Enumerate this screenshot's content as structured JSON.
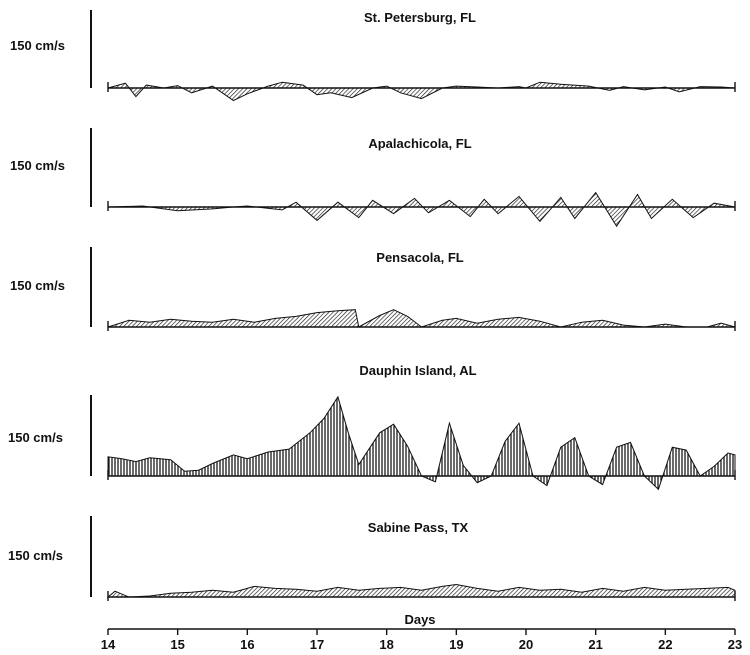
{
  "chart_data": {
    "type": "area",
    "xlabel": "Days",
    "x_ticks": [
      "14",
      "15",
      "16",
      "17",
      "18",
      "19",
      "20",
      "21",
      "22",
      "23"
    ],
    "xlim": [
      14,
      23
    ],
    "scale_bar_label": "150 cm/s",
    "scale_bar_value": 150,
    "panels": [
      {
        "title": "St. Petersburg, FL",
        "series": {
          "x": [
            14.0,
            14.25,
            14.4,
            14.55,
            14.8,
            15.0,
            15.2,
            15.5,
            15.8,
            16.0,
            16.3,
            16.5,
            16.8,
            17.0,
            17.2,
            17.5,
            17.8,
            18.0,
            18.2,
            18.5,
            18.8,
            19.0,
            19.3,
            19.6,
            19.9,
            20.0,
            20.2,
            20.5,
            20.9,
            21.2,
            21.4,
            21.7,
            22.0,
            22.2,
            22.5,
            22.8,
            23.0
          ],
          "y": [
            0,
            10,
            -18,
            6,
            0,
            5,
            -10,
            4,
            -26,
            -12,
            4,
            12,
            6,
            -14,
            -10,
            -20,
            0,
            4,
            -10,
            -22,
            0,
            4,
            2,
            0,
            3,
            0,
            12,
            8,
            4,
            -5,
            3,
            -4,
            2,
            -8,
            3,
            2,
            0
          ]
        }
      },
      {
        "title": "Apalachicola, FL",
        "series": {
          "x": [
            14.0,
            14.5,
            15.0,
            15.5,
            15.8,
            16.0,
            16.5,
            16.7,
            17.0,
            17.3,
            17.6,
            17.8,
            18.1,
            18.4,
            18.6,
            18.9,
            19.2,
            19.4,
            19.6,
            19.9,
            20.2,
            20.5,
            20.7,
            21.0,
            21.3,
            21.6,
            21.8,
            22.1,
            22.4,
            22.7,
            23.0
          ],
          "y": [
            0,
            2,
            -8,
            -4,
            0,
            2,
            -6,
            10,
            -28,
            10,
            -22,
            14,
            -14,
            18,
            -12,
            14,
            -20,
            16,
            -14,
            22,
            -30,
            20,
            -24,
            30,
            -40,
            26,
            -24,
            16,
            -22,
            8,
            0
          ]
        }
      },
      {
        "title": "Pensacola, FL",
        "series": {
          "x": [
            14.0,
            14.3,
            14.6,
            14.9,
            15.2,
            15.5,
            15.8,
            16.1,
            16.4,
            16.7,
            17.0,
            17.3,
            17.55,
            17.6,
            17.9,
            18.1,
            18.3,
            18.5,
            18.8,
            19.0,
            19.3,
            19.6,
            19.9,
            20.2,
            20.5,
            20.8,
            21.1,
            21.4,
            21.7,
            22.0,
            22.3,
            22.6,
            22.8,
            23.0
          ],
          "y": [
            0,
            14,
            10,
            16,
            12,
            10,
            16,
            10,
            18,
            22,
            30,
            34,
            36,
            0,
            24,
            36,
            22,
            0,
            14,
            18,
            8,
            16,
            20,
            12,
            0,
            10,
            14,
            4,
            0,
            6,
            0,
            0,
            8,
            0
          ]
        }
      },
      {
        "title": "Dauphin Island, AL",
        "series": {
          "x": [
            14.0,
            14.2,
            14.4,
            14.6,
            14.9,
            15.1,
            15.3,
            15.5,
            15.8,
            16.0,
            16.3,
            16.6,
            16.9,
            17.1,
            17.3,
            17.45,
            17.6,
            17.9,
            18.1,
            18.3,
            18.5,
            18.7,
            18.9,
            19.1,
            19.3,
            19.5,
            19.7,
            19.9,
            20.1,
            20.3,
            20.5,
            20.7,
            20.9,
            21.1,
            21.3,
            21.5,
            21.7,
            21.9,
            22.1,
            22.3,
            22.5,
            22.7,
            22.9,
            23.0
          ],
          "y": [
            40,
            36,
            30,
            38,
            34,
            10,
            12,
            26,
            44,
            36,
            50,
            56,
            90,
            120,
            165,
            90,
            24,
            90,
            108,
            62,
            0,
            -12,
            110,
            22,
            -14,
            0,
            72,
            110,
            0,
            -20,
            60,
            80,
            0,
            -18,
            60,
            70,
            0,
            -28,
            60,
            54,
            0,
            20,
            48,
            44
          ]
        }
      },
      {
        "title": "Sabine Pass, TX",
        "series": {
          "x": [
            14.0,
            14.1,
            14.3,
            14.6,
            14.9,
            15.2,
            15.5,
            15.8,
            16.1,
            16.4,
            16.7,
            17.0,
            17.3,
            17.6,
            17.9,
            18.2,
            18.5,
            18.8,
            19.0,
            19.3,
            19.6,
            19.9,
            20.2,
            20.5,
            20.8,
            21.1,
            21.4,
            21.7,
            22.0,
            22.3,
            22.6,
            22.9,
            23.0
          ],
          "y": [
            0,
            12,
            0,
            2,
            8,
            10,
            14,
            10,
            22,
            18,
            16,
            12,
            20,
            14,
            18,
            20,
            14,
            22,
            26,
            18,
            12,
            20,
            14,
            16,
            10,
            18,
            12,
            20,
            14,
            16,
            18,
            20,
            14
          ]
        }
      }
    ]
  }
}
